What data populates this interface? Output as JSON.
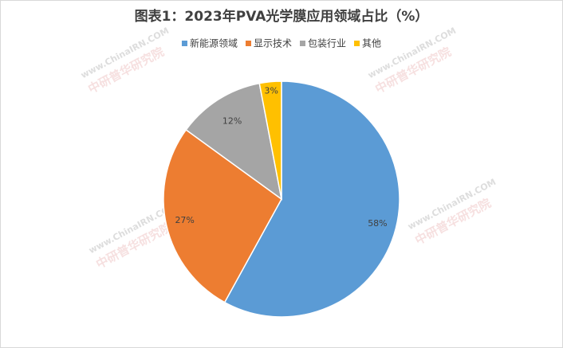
{
  "chart_data": {
    "type": "pie",
    "title": "图表1：2023年PVA光学膜应用领域占比（%）",
    "categories": [
      "新能源领域",
      "显示技术",
      "包装行业",
      "其他"
    ],
    "values": [
      58,
      27,
      12,
      3
    ],
    "value_labels": [
      "58%",
      "27%",
      "12%",
      "3%"
    ],
    "colors": [
      "#5b9bd5",
      "#ed7d31",
      "#a5a5a5",
      "#ffc000"
    ],
    "legend": "top"
  },
  "watermark": {
    "site": "www.ChinaIRN.COM",
    "name": "中研普华研究院"
  }
}
